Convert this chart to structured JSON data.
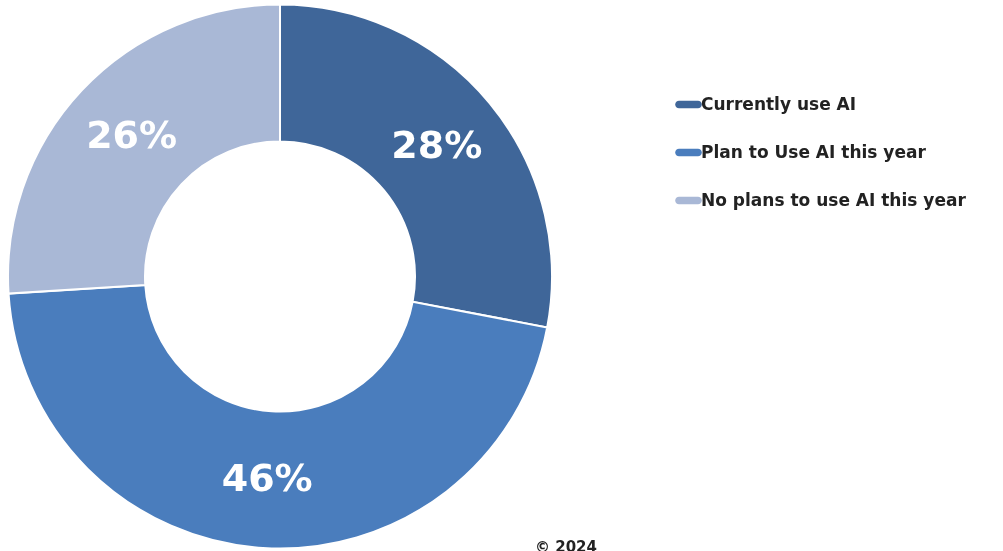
{
  "chart_data": {
    "type": "donut",
    "categories": [
      "Currently use AI",
      "Plan to Use AI this year",
      "No plans to use AI this year"
    ],
    "values": [
      28,
      46,
      26
    ],
    "colors": [
      "#3f6699",
      "#4a7dbd",
      "#a9b8d6"
    ],
    "value_labels": [
      "28%",
      "46%",
      "26%"
    ],
    "legend": "right",
    "annotations": [
      "© 2024"
    ]
  }
}
